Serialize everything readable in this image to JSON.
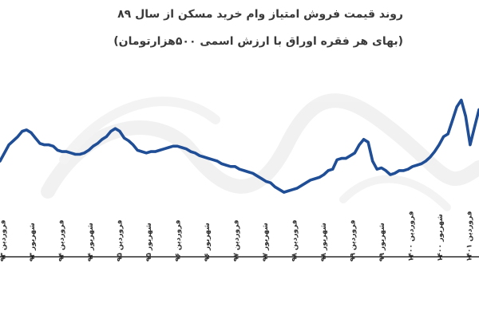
{
  "chart_data": {
    "type": "line",
    "title": "روند قیمت فروش امتیاز وام خرید مسکن از سال ۸۹",
    "subtitle": "(بهای هر فقره اوراق با ارزش اسمی ۵۰۰هزارتومان)",
    "xlabel": "",
    "ylabel": "",
    "grid": false,
    "legend": "none",
    "line_color": "#1f4e96",
    "tick_labels": [
      "فروردین ۹۳",
      "شهریور ۹۳",
      "فروردین ۹۴",
      "شهریور ۹۴",
      "فروردین ۹۵",
      "شهریور ۹۵",
      "فروردین ۹۶",
      "شهریور ۹۶",
      "فروردین ۹۷",
      "شهریور ۹۷",
      "فروردین ۹۸",
      "شهریور ۹۸",
      "فروردین ۹۹",
      "شهریور ۹۹",
      "فروردین ۱۴۰۰",
      "شهریور ۱۴۰۰",
      "فروردین ۱۴۰۱"
    ],
    "ylim": [
      0,
      100
    ],
    "series": [
      {
        "values": [
          40,
          46,
          52,
          55,
          58,
          62,
          63,
          61,
          57,
          53,
          52,
          52,
          51,
          48,
          47,
          47,
          46,
          45,
          45,
          46,
          48,
          51,
          53,
          56,
          58,
          62,
          64,
          62,
          57,
          55,
          52,
          48,
          47,
          46,
          47,
          47,
          48,
          49,
          50,
          51,
          51,
          50,
          49,
          47,
          46,
          44,
          43,
          42,
          41,
          40,
          38,
          37,
          36,
          36,
          34,
          33,
          32,
          31,
          29,
          27,
          25,
          24,
          21,
          19,
          17,
          18,
          19,
          20,
          22,
          24,
          26,
          27,
          28,
          30,
          33,
          34,
          41,
          42,
          42,
          44,
          46,
          52,
          56,
          54,
          40,
          34,
          35,
          33,
          30,
          31,
          33,
          33,
          34,
          36,
          37,
          38,
          40,
          43,
          47,
          52,
          58,
          60,
          70,
          80,
          85,
          73,
          52,
          65,
          78
        ]
      }
    ]
  }
}
